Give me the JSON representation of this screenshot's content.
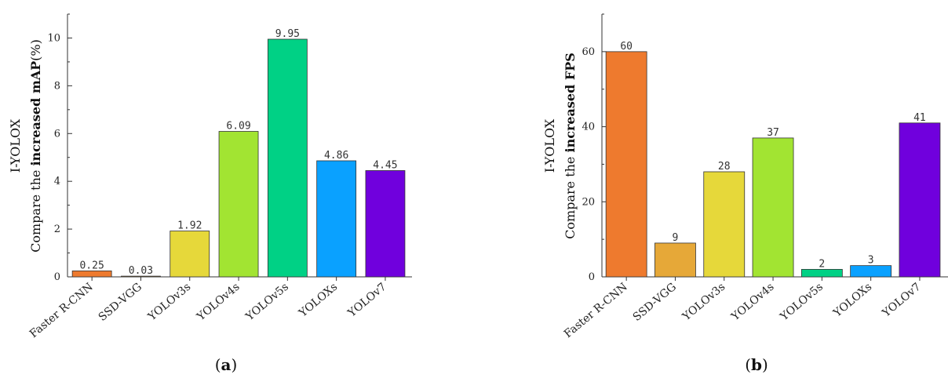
{
  "chart_data": [
    {
      "type": "bar",
      "panel_label": "a",
      "categories": [
        "Faster R-CNN",
        "SSD-VGG",
        "YOLOv3s",
        "YOLOv4s",
        "YOLOv5s",
        "YOLOXs",
        "YOLOv7"
      ],
      "values": [
        0.25,
        0.03,
        1.92,
        6.09,
        9.95,
        4.86,
        4.45
      ],
      "value_labels": [
        "0.25",
        "0.03",
        "1.92",
        "6.09",
        "9.95",
        "4.86",
        "4.45"
      ],
      "colors": [
        "#EE7A2E",
        "#E6A838",
        "#E6D83A",
        "#A2E432",
        "#00D185",
        "#0AA1FF",
        "#7000DD"
      ],
      "ylim": [
        0,
        11
      ],
      "yticks": [
        0,
        2,
        4,
        6,
        8,
        10
      ],
      "ylabel_line1": "I-YOLOX",
      "ylabel_line2_pre": "Compare the ",
      "ylabel_line2_bold": "increased mAP",
      "ylabel_line2_post": "(%)"
    },
    {
      "type": "bar",
      "panel_label": "b",
      "categories": [
        "Faster R-CNN",
        "SSD-VGG",
        "YOLOv3s",
        "YOLOv4s",
        "YOLOv5s",
        "YOLOXs",
        "YOLOv7"
      ],
      "values": [
        60,
        9,
        28,
        37,
        2,
        3,
        41
      ],
      "value_labels": [
        "60",
        "9",
        "28",
        "37",
        "2",
        "3",
        "41"
      ],
      "colors": [
        "#EE7A2E",
        "#E6A838",
        "#E6D83A",
        "#A2E432",
        "#00D185",
        "#0AA1FF",
        "#7000DD"
      ],
      "ylim": [
        0,
        70
      ],
      "yticks": [
        0,
        20,
        40,
        60
      ],
      "ylabel_line1": "I-YOLOX",
      "ylabel_line2_pre": "Compare the ",
      "ylabel_line2_bold": "increased FPS",
      "ylabel_line2_post": ""
    }
  ]
}
